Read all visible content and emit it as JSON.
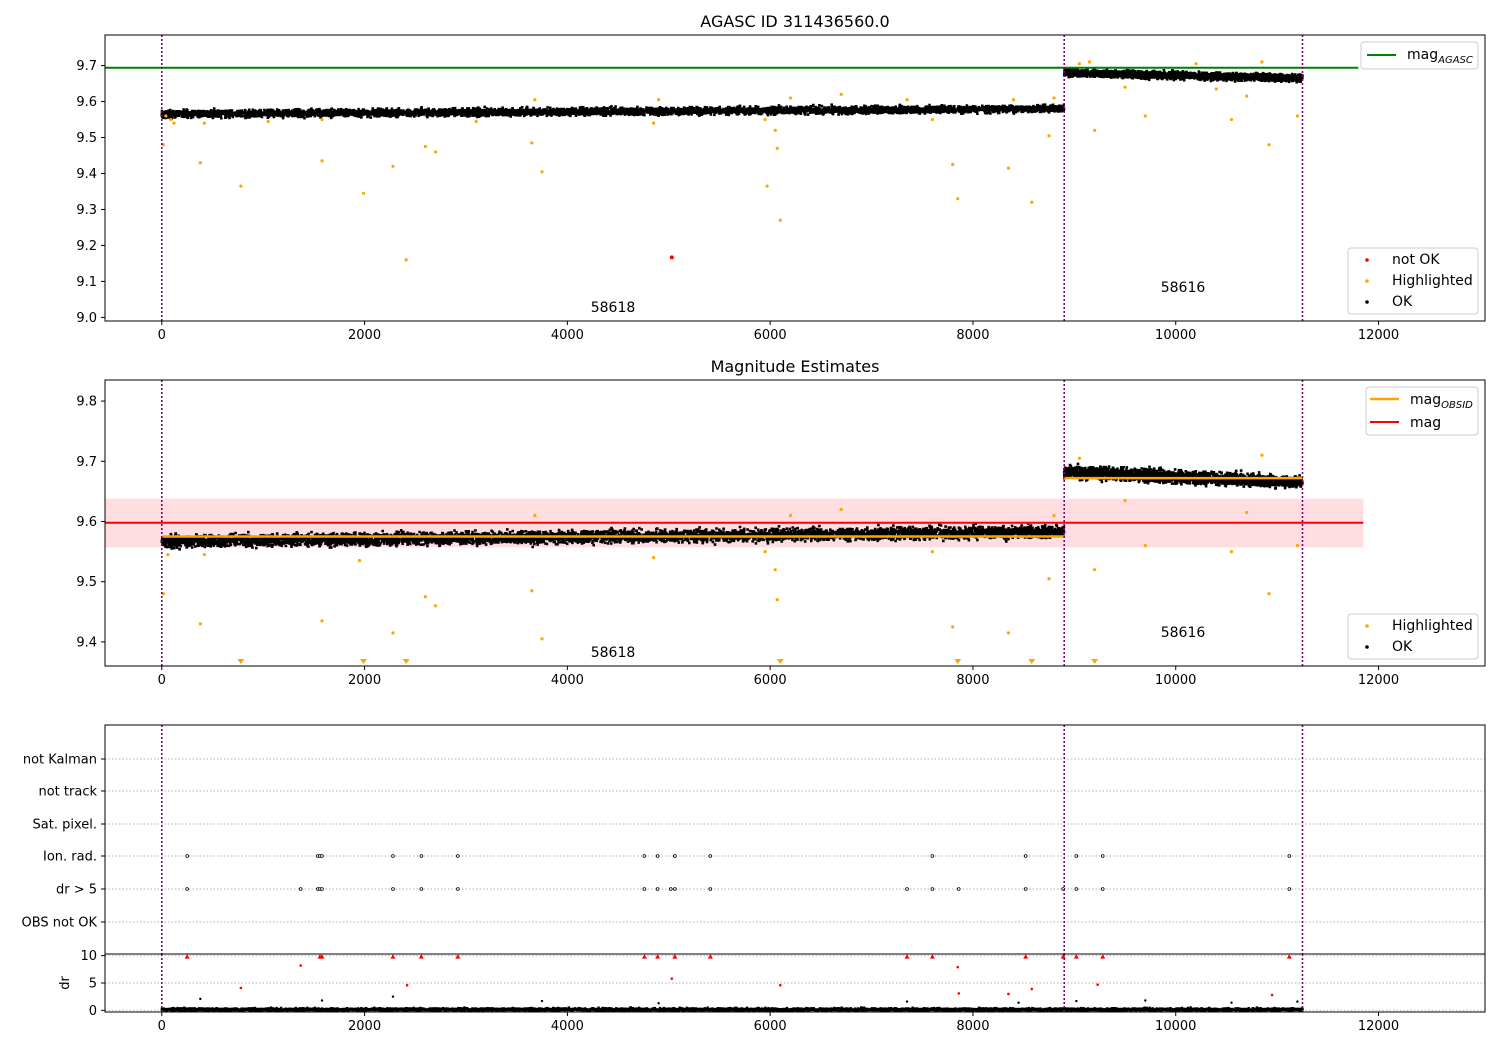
{
  "figure": {
    "colors": {
      "ok": "#000000",
      "highlighted": "#ffa500",
      "not_ok": "#ff0000",
      "mag_agasc_line": "#008000",
      "mag_obsid_line": "#ffa500",
      "mag_line": "#ff0000",
      "mag_band": "#ffdde1",
      "boundary": "#800080",
      "grid": "#b0b0b0"
    },
    "boundaries": [
      0,
      8900,
      11250
    ],
    "obsids": [
      {
        "label": "58618",
        "x": 4450
      },
      {
        "label": "58616",
        "x": 10080
      }
    ]
  },
  "chart_data": [
    {
      "type": "scatter",
      "title": "AGASC ID 311436560.0",
      "xlim": [
        -560,
        13050
      ],
      "ylim": [
        8.99,
        9.785
      ],
      "xticks": [
        0,
        2000,
        4000,
        6000,
        8000,
        10000,
        12000
      ],
      "yticks": [
        9.0,
        9.1,
        9.2,
        9.3,
        9.4,
        9.5,
        9.6,
        9.7
      ],
      "lines": [
        {
          "name": "mag",
          "subscript": "AGASC",
          "y": 9.694,
          "x": [
            -560,
            11800
          ]
        }
      ],
      "segments": [
        {
          "x": [
            0,
            8900
          ],
          "y_start": 9.565,
          "y_end": 9.58,
          "spread": 0.018
        },
        {
          "x": [
            8900,
            11250
          ],
          "y_start": 9.68,
          "y_end": 9.665,
          "spread": 0.018
        }
      ],
      "highlighted_points": [
        [
          15,
          9.48
        ],
        [
          40,
          9.56
        ],
        [
          90,
          9.55
        ],
        [
          120,
          9.54
        ],
        [
          380,
          9.43
        ],
        [
          420,
          9.54
        ],
        [
          780,
          9.365
        ],
        [
          1050,
          9.545
        ],
        [
          1580,
          9.435
        ],
        [
          1580,
          9.55
        ],
        [
          1990,
          9.345
        ],
        [
          2280,
          9.42
        ],
        [
          2410,
          9.16
        ],
        [
          2600,
          9.475
        ],
        [
          2700,
          9.46
        ],
        [
          3100,
          9.545
        ],
        [
          3650,
          9.485
        ],
        [
          3750,
          9.405
        ],
        [
          3680,
          9.605
        ],
        [
          4850,
          9.54
        ],
        [
          4900,
          9.605
        ],
        [
          5950,
          9.55
        ],
        [
          5970,
          9.365
        ],
        [
          6050,
          9.52
        ],
        [
          6070,
          9.47
        ],
        [
          6100,
          9.27
        ],
        [
          6200,
          9.61
        ],
        [
          6700,
          9.62
        ],
        [
          7350,
          9.605
        ],
        [
          7600,
          9.55
        ],
        [
          7800,
          9.425
        ],
        [
          7850,
          9.33
        ],
        [
          8350,
          9.415
        ],
        [
          8400,
          9.605
        ],
        [
          8580,
          9.32
        ],
        [
          8750,
          9.505
        ],
        [
          8800,
          9.61
        ],
        [
          9050,
          9.705
        ],
        [
          9150,
          9.71
        ],
        [
          9200,
          9.52
        ],
        [
          9500,
          9.64
        ],
        [
          9700,
          9.56
        ],
        [
          10200,
          9.705
        ],
        [
          10400,
          9.635
        ],
        [
          10550,
          9.55
        ],
        [
          10700,
          9.615
        ],
        [
          10850,
          9.71
        ],
        [
          10920,
          9.48
        ],
        [
          11200,
          9.56
        ]
      ],
      "not_ok_points": [
        [
          5030,
          9.167
        ]
      ],
      "legend": [
        "not OK",
        "Highlighted",
        "OK"
      ]
    },
    {
      "type": "scatter",
      "title": "Magnitude Estimates",
      "xlim": [
        -560,
        13050
      ],
      "ylim": [
        9.36,
        9.835
      ],
      "xticks": [
        0,
        2000,
        4000,
        6000,
        8000,
        10000,
        12000
      ],
      "yticks": [
        9.4,
        9.5,
        9.6,
        9.7,
        9.8
      ],
      "mag": {
        "name": "mag",
        "y": 9.598,
        "band": [
          9.557,
          9.638
        ],
        "x": [
          -560,
          11850
        ]
      },
      "mag_obsid": {
        "name": "mag",
        "subscript": "OBSID",
        "segments": [
          {
            "x": [
              0,
              8900
            ],
            "y": 9.575
          },
          {
            "x": [
              8900,
              11250
            ],
            "y": 9.672
          }
        ]
      },
      "segments": [
        {
          "x": [
            0,
            8900
          ],
          "y_start": 9.567,
          "y_end": 9.583,
          "spread": 0.018
        },
        {
          "x": [
            8900,
            11250
          ],
          "y_start": 9.682,
          "y_end": 9.665,
          "spread": 0.018
        }
      ],
      "highlighted_points": [
        [
          15,
          9.48
        ],
        [
          60,
          9.545
        ],
        [
          380,
          9.43
        ],
        [
          420,
          9.545
        ],
        [
          1580,
          9.435
        ],
        [
          1950,
          9.535
        ],
        [
          2280,
          9.415
        ],
        [
          2600,
          9.475
        ],
        [
          2700,
          9.46
        ],
        [
          3650,
          9.485
        ],
        [
          3750,
          9.405
        ],
        [
          3680,
          9.61
        ],
        [
          4850,
          9.54
        ],
        [
          5950,
          9.55
        ],
        [
          6050,
          9.52
        ],
        [
          6070,
          9.47
        ],
        [
          6200,
          9.61
        ],
        [
          6700,
          9.62
        ],
        [
          7600,
          9.55
        ],
        [
          7800,
          9.425
        ],
        [
          8350,
          9.415
        ],
        [
          8750,
          9.505
        ],
        [
          8800,
          9.61
        ],
        [
          9050,
          9.705
        ],
        [
          9200,
          9.52
        ],
        [
          9500,
          9.635
        ],
        [
          9700,
          9.56
        ],
        [
          10550,
          9.55
        ],
        [
          10700,
          9.615
        ],
        [
          10850,
          9.71
        ],
        [
          10920,
          9.48
        ],
        [
          11200,
          9.56
        ]
      ],
      "below_range_markers": [
        780,
        1990,
        2410,
        6100,
        7850,
        8580,
        9200
      ],
      "legend_lines": [
        "mag",
        "mag"
      ],
      "legend": [
        "Highlighted",
        "OK"
      ]
    },
    {
      "type": "scatter",
      "title": "",
      "xlim": [
        -560,
        13050
      ],
      "categories": [
        "not Kalman",
        "not track",
        "Sat. pixel.",
        "Ion. rad.",
        "dr > 5",
        "OBS not OK"
      ],
      "flags": {
        "Ion. rad.": [
          250,
          1540,
          1560,
          1580,
          2280,
          2560,
          2920,
          4760,
          4890,
          5060,
          5410,
          7600,
          8520,
          9020,
          9280,
          11120
        ],
        "dr > 5": [
          250,
          1370,
          1540,
          1560,
          1580,
          2280,
          2560,
          2920,
          4760,
          4890,
          5020,
          5060,
          5410,
          7350,
          7600,
          7860,
          8520,
          8890,
          9020,
          9280,
          11120
        ]
      }
    },
    {
      "type": "scatter",
      "title": "",
      "ylabel": "dr",
      "xlim": [
        -560,
        13050
      ],
      "ylim": [
        -0.3,
        10.3
      ],
      "xticks": [
        0,
        2000,
        4000,
        6000,
        8000,
        10000,
        12000
      ],
      "yticks": [
        0,
        5,
        10
      ],
      "red_triangles": [
        250,
        1560,
        1580,
        2280,
        2560,
        2920,
        4760,
        4890,
        5060,
        5410,
        7350,
        7600,
        8520,
        8890,
        9020,
        9280,
        11120
      ],
      "red_points": [
        [
          780,
          4.1
        ],
        [
          1370,
          8.2
        ],
        [
          2420,
          4.6
        ],
        [
          5030,
          5.8
        ],
        [
          6100,
          4.6
        ],
        [
          7850,
          7.9
        ],
        [
          7860,
          3.1
        ],
        [
          8350,
          3.0
        ],
        [
          8580,
          3.9
        ],
        [
          9230,
          4.7
        ],
        [
          10950,
          2.8
        ]
      ],
      "black_outliers": [
        [
          380,
          2.1
        ],
        [
          1580,
          1.8
        ],
        [
          2280,
          2.5
        ],
        [
          3750,
          1.7
        ],
        [
          4900,
          1.3
        ],
        [
          7350,
          1.6
        ],
        [
          8450,
          1.4
        ],
        [
          9020,
          1.7
        ],
        [
          9700,
          1.8
        ],
        [
          10550,
          1.4
        ],
        [
          11200,
          1.6
        ]
      ]
    }
  ]
}
